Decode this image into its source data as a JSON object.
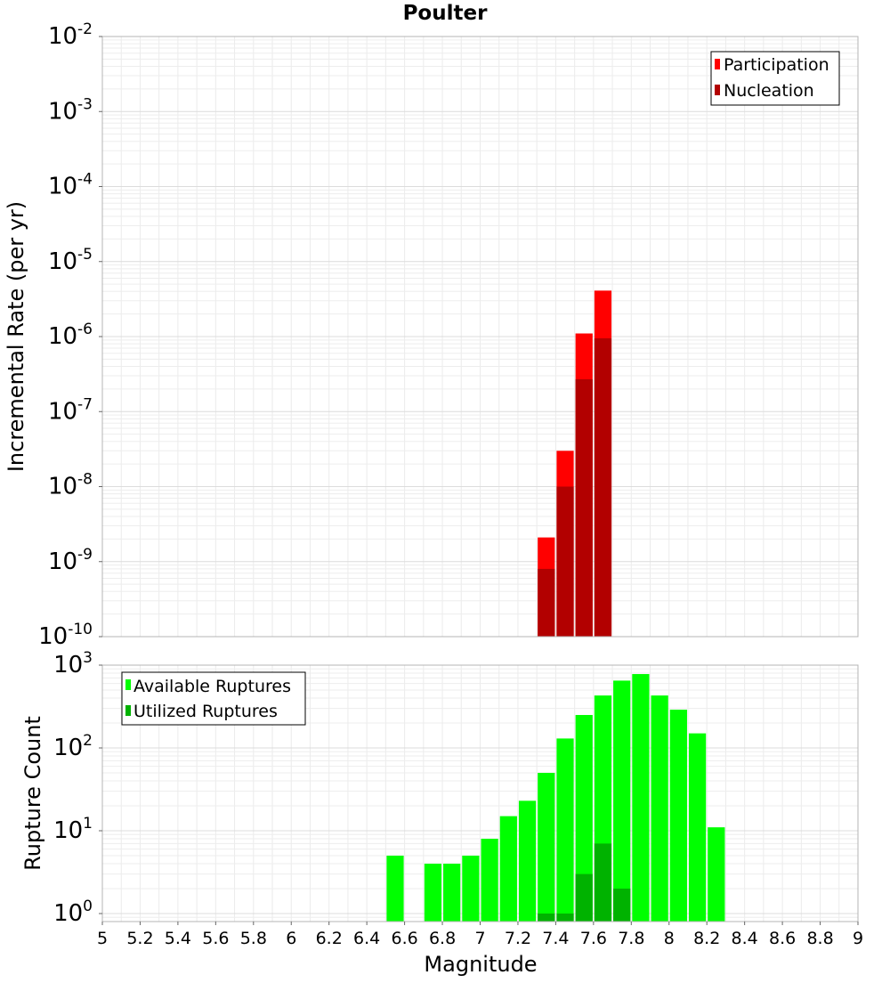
{
  "chart_data": [
    {
      "type": "bar",
      "title": "Poulter",
      "ylabel": "Incremental Rate (per yr)",
      "xlabel": "",
      "y_scale": "log",
      "ylim": [
        1e-10,
        0.01
      ],
      "xlim": [
        5,
        9
      ],
      "grid": true,
      "legend_position": "top-right",
      "y_tick_labels": [
        {
          "base": "10",
          "exp": "-2"
        },
        {
          "base": "10",
          "exp": "-3"
        },
        {
          "base": "10",
          "exp": "-4"
        },
        {
          "base": "10",
          "exp": "-5"
        },
        {
          "base": "10",
          "exp": "-6"
        },
        {
          "base": "10",
          "exp": "-7"
        },
        {
          "base": "10",
          "exp": "-8"
        },
        {
          "base": "10",
          "exp": "-9"
        },
        {
          "base": "10",
          "exp": "-10"
        }
      ],
      "bar_width": 0.1,
      "series": [
        {
          "name": "Participation",
          "color": "#ff0000",
          "x": [
            7.35,
            7.45,
            7.55,
            7.65
          ],
          "values": [
            2.1e-09,
            3e-08,
            1.1e-06,
            4.1e-06
          ]
        },
        {
          "name": "Nucleation",
          "color": "#b20000",
          "x": [
            7.35,
            7.45,
            7.55,
            7.65
          ],
          "values": [
            8e-10,
            1e-08,
            2.7e-07,
            9.5e-07
          ]
        }
      ]
    },
    {
      "type": "bar",
      "title": "",
      "ylabel": "Rupture Count",
      "xlabel": "Magnitude",
      "y_scale": "log",
      "ylim": [
        0.8,
        1000
      ],
      "xlim": [
        5,
        9
      ],
      "grid": true,
      "legend_position": "top-left",
      "y_tick_labels": [
        {
          "base": "10",
          "exp": "3"
        },
        {
          "base": "10",
          "exp": "2"
        },
        {
          "base": "10",
          "exp": "1"
        },
        {
          "base": "10",
          "exp": "0"
        }
      ],
      "x_tick_labels": [
        "5",
        "5.2",
        "5.4",
        "5.6",
        "5.8",
        "6",
        "6.2",
        "6.4",
        "6.6",
        "6.8",
        "7",
        "7.2",
        "7.4",
        "7.6",
        "7.8",
        "8",
        "8.2",
        "8.4",
        "8.6",
        "8.8",
        "9"
      ],
      "bar_width": 0.1,
      "series": [
        {
          "name": "Available Ruptures",
          "color": "#00ff00",
          "x": [
            6.55,
            6.75,
            6.85,
            6.95,
            7.05,
            7.15,
            7.25,
            7.35,
            7.45,
            7.55,
            7.65,
            7.75,
            7.85,
            7.95,
            8.05,
            8.15,
            8.25
          ],
          "values": [
            5,
            4,
            4,
            5,
            8,
            15,
            23,
            50,
            130,
            250,
            430,
            650,
            780,
            430,
            290,
            150,
            11
          ]
        },
        {
          "name": "Utilized Ruptures",
          "color": "#00b200",
          "x": [
            7.35,
            7.45,
            7.55,
            7.65,
            7.75
          ],
          "values": [
            1,
            1,
            3,
            7,
            2
          ]
        }
      ]
    }
  ]
}
